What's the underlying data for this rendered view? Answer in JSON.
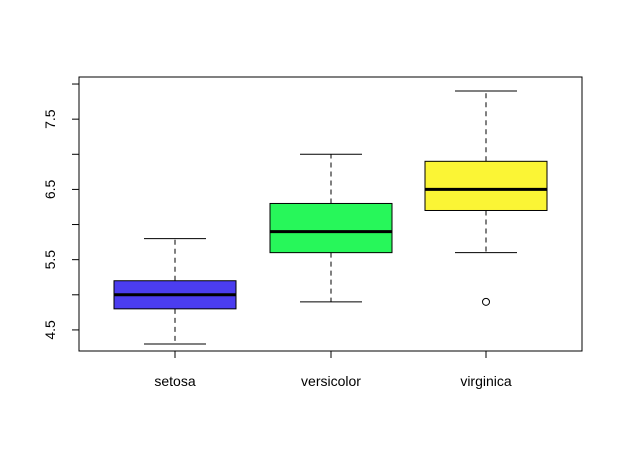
{
  "chart_data": {
    "type": "box",
    "title": "",
    "xlabel": "",
    "ylabel": "",
    "categories": [
      "setosa",
      "versicolor",
      "virginica"
    ],
    "yticks": [
      "4.5",
      "5.5",
      "6.5",
      "7.5"
    ],
    "ylim": [
      4.2,
      8.1
    ],
    "boxes": [
      {
        "category": "setosa",
        "color": "#4b3df0",
        "whisker_low": 4.3,
        "q1": 4.8,
        "median": 5.0,
        "q3": 5.2,
        "whisker_high": 5.8,
        "outliers": []
      },
      {
        "category": "versicolor",
        "color": "#27f75a",
        "whisker_low": 4.9,
        "q1": 5.6,
        "median": 5.9,
        "q3": 6.3,
        "whisker_high": 7.0,
        "outliers": []
      },
      {
        "category": "virginica",
        "color": "#fbf535",
        "whisker_low": 5.6,
        "q1": 6.2,
        "median": 6.5,
        "q3": 6.9,
        "whisker_high": 7.9,
        "outliers": [
          4.9
        ]
      }
    ],
    "grid": false,
    "legend": "none"
  }
}
